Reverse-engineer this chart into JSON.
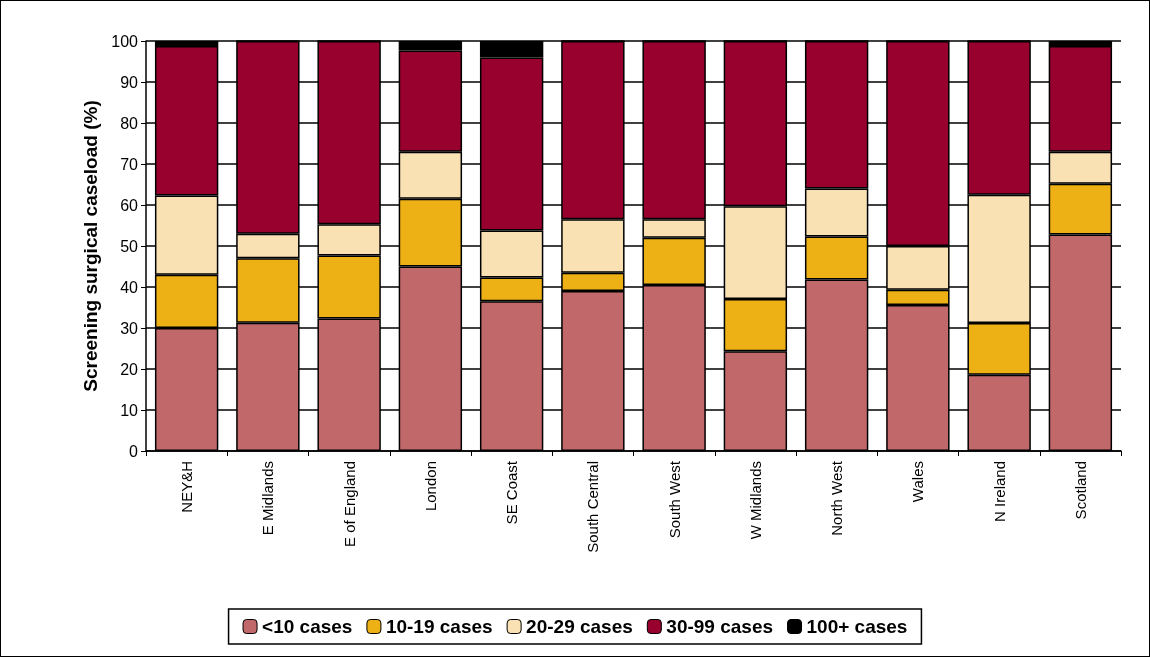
{
  "chart_data": {
    "type": "bar",
    "stacked": true,
    "ylabel": "Screening surgical caseload (%)",
    "categories": [
      "NEY&H",
      "E Midlands",
      "E of England",
      "London",
      "SE Coast",
      "South Central",
      "South West",
      "W Midlands",
      "North West",
      "Wales",
      "N Ireland",
      "Scotland"
    ],
    "series": [
      {
        "name": "<10 cases",
        "color": "#c0686a",
        "values": [
          30,
          31.3,
          32.3,
          45,
          36.5,
          39,
          40.5,
          24.3,
          41.8,
          35.6,
          18.6,
          52.8
        ]
      },
      {
        "name": "10-19 cases",
        "color": "#edb116",
        "values": [
          13,
          15.7,
          15.4,
          16.5,
          5.8,
          4.5,
          11.5,
          12.8,
          10.5,
          3.7,
          12.6,
          12.4
        ]
      },
      {
        "name": "20-29 cases",
        "color": "#f9e1b4",
        "values": [
          19.3,
          6,
          7.6,
          11.5,
          11.5,
          13,
          4.5,
          22.6,
          11.7,
          10.7,
          31.3,
          7.8
        ]
      },
      {
        "name": "30-99 cases",
        "color": "#98002e",
        "values": [
          36.5,
          47,
          44.7,
          24.7,
          42.2,
          43.5,
          43.5,
          40.3,
          36,
          50,
          37.5,
          25.8
        ]
      },
      {
        "name": "100+ cases",
        "color": "#000000",
        "values": [
          1.2,
          0,
          0,
          2.3,
          4,
          0,
          0,
          0,
          0,
          0,
          0,
          1.2
        ]
      }
    ],
    "ylim": [
      0,
      100
    ],
    "yticks": [
      0,
      10,
      20,
      30,
      40,
      50,
      60,
      70,
      80,
      90,
      100
    ],
    "grid": "y",
    "legend": "bottom"
  }
}
